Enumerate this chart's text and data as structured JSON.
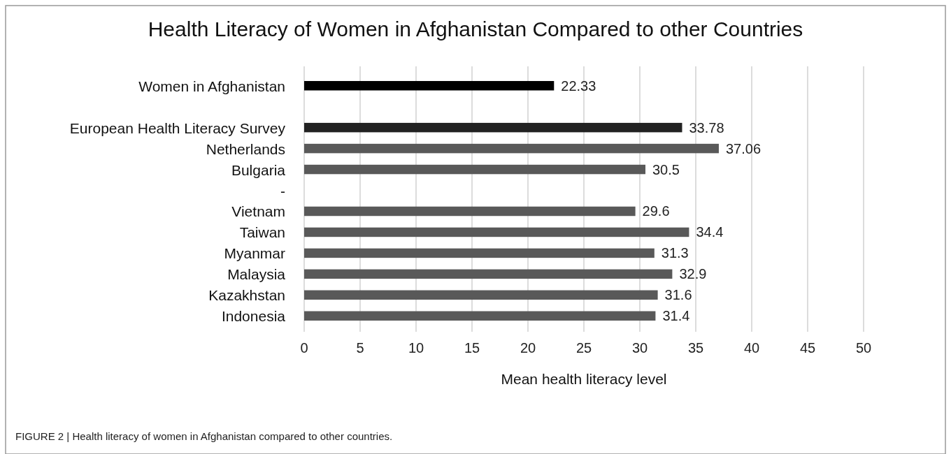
{
  "chart_data": {
    "type": "bar",
    "orientation": "horizontal",
    "title": "Health Literacy of Women in Afghanistan Compared to other Countries",
    "xlabel": "Mean health literacy level",
    "categories": [
      "Women in Afghanistan",
      null,
      "European Health Literacy Survey",
      "Netherlands",
      "Bulgaria",
      "-",
      "Vietnam",
      "Taiwan",
      "Myanmar",
      "Malaysia",
      "Kazakhstan",
      "Indonesia"
    ],
    "values": [
      22.33,
      null,
      33.78,
      37.06,
      30.5,
      null,
      29.6,
      34.4,
      31.3,
      32.9,
      31.6,
      31.4
    ],
    "colors": [
      "#000000",
      null,
      "#222222",
      "#595959",
      "#595959",
      null,
      "#595959",
      "#595959",
      "#595959",
      "#595959",
      "#595959",
      "#595959"
    ],
    "data_labels": true,
    "grid": "x",
    "xlim": [
      0,
      50
    ],
    "xticks": [
      0,
      5,
      10,
      15,
      20,
      25,
      30,
      35,
      40,
      45,
      50
    ],
    "annotations": [
      "FIGURE 2 | Health literacy of women in Afghanistan compared to other countries."
    ]
  }
}
